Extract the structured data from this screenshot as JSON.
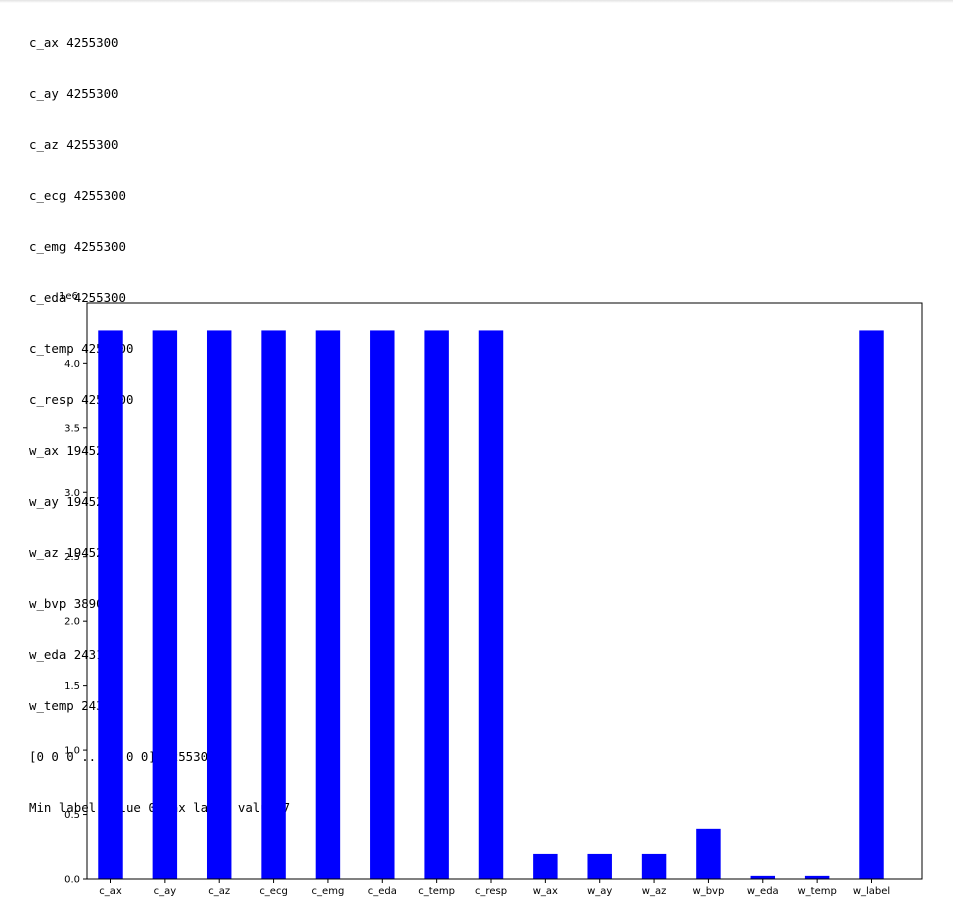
{
  "output_lines": [
    "c_ax 4255300",
    "c_ay 4255300",
    "c_az 4255300",
    "c_ecg 4255300",
    "c_emg 4255300",
    "c_eda 4255300",
    "c_temp 4255300",
    "c_resp 4255300",
    "w_ax 194528",
    "w_ay 194528",
    "w_az 194528",
    "w_bvp 389056",
    "w_eda 24316",
    "w_temp 24316",
    "[0 0 0 ... 0 0 0] 4255300",
    "Min label value 0 Max label value 7"
  ],
  "chart_data": {
    "type": "bar",
    "categories": [
      "c_ax",
      "c_ay",
      "c_az",
      "c_ecg",
      "c_emg",
      "c_eda",
      "c_temp",
      "c_resp",
      "w_ax",
      "w_ay",
      "w_az",
      "w_bvp",
      "w_eda",
      "w_temp",
      "w_label"
    ],
    "values": [
      4255300,
      4255300,
      4255300,
      4255300,
      4255300,
      4255300,
      4255300,
      4255300,
      194528,
      194528,
      194528,
      389056,
      24316,
      24316,
      4255300
    ],
    "ylim": [
      0,
      4468065
    ],
    "yticks": [
      0,
      500000,
      1000000,
      1500000,
      2000000,
      2500000,
      3000000,
      3500000,
      4000000
    ],
    "ytick_labels": [
      "0.0",
      "0.5",
      "1.0",
      "1.5",
      "2.0",
      "2.5",
      "3.0",
      "3.5",
      "4.0"
    ],
    "offset_label": "1e6",
    "bar_color": "#0000ff",
    "grid": false,
    "title": "",
    "xlabel": "",
    "ylabel": ""
  }
}
